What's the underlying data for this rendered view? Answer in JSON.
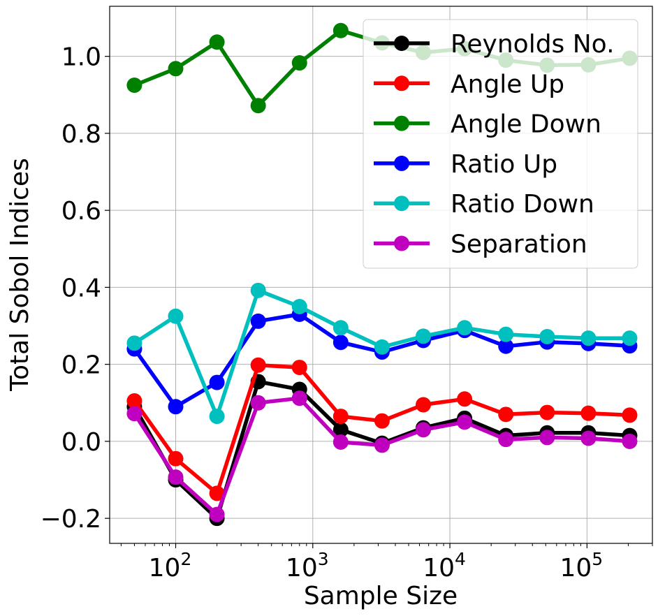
{
  "chart_data": {
    "type": "line",
    "title": "",
    "xlabel": "Sample Size",
    "ylabel": "Total Sobol Indices",
    "xscale": "log",
    "xlim": [
      33,
      300000
    ],
    "ylim": [
      -0.265,
      1.13
    ],
    "grid": true,
    "legend_position": "upper right",
    "x_ticks": [
      {
        "value": 100,
        "base": "10",
        "exp": "2"
      },
      {
        "value": 1000,
        "base": "10",
        "exp": "3"
      },
      {
        "value": 10000,
        "base": "10",
        "exp": "4"
      },
      {
        "value": 100000,
        "base": "10",
        "exp": "5"
      }
    ],
    "y_ticks": [
      {
        "value": -0.2,
        "label": "−0.2"
      },
      {
        "value": 0.0,
        "label": "0.0"
      },
      {
        "value": 0.2,
        "label": "0.2"
      },
      {
        "value": 0.4,
        "label": "0.4"
      },
      {
        "value": 0.6,
        "label": "0.6"
      },
      {
        "value": 0.8,
        "label": "0.8"
      },
      {
        "value": 1.0,
        "label": "1.0"
      }
    ],
    "x": [
      50,
      100,
      200,
      400,
      800,
      1600,
      3200,
      6400,
      12800,
      25600,
      51200,
      102400,
      204800
    ],
    "series": [
      {
        "name": "Reynolds No.",
        "color": "#000000",
        "values": [
          0.09,
          -0.1,
          -0.2,
          0.155,
          0.135,
          0.03,
          -0.005,
          0.035,
          0.06,
          0.015,
          0.022,
          0.022,
          0.015
        ]
      },
      {
        "name": "Angle Up",
        "color": "#ff0000",
        "values": [
          0.105,
          -0.045,
          -0.135,
          0.198,
          0.192,
          0.065,
          0.053,
          0.095,
          0.11,
          0.07,
          0.075,
          0.073,
          0.068
        ]
      },
      {
        "name": "Angle Down",
        "color": "#008000",
        "values": [
          0.925,
          0.968,
          1.037,
          0.872,
          0.983,
          1.067,
          1.035,
          1.01,
          1.02,
          0.99,
          0.977,
          0.978,
          0.995
        ]
      },
      {
        "name": "Ratio Up",
        "color": "#0000ff",
        "values": [
          0.24,
          0.09,
          0.153,
          0.312,
          0.33,
          0.257,
          0.232,
          0.262,
          0.288,
          0.247,
          0.258,
          0.254,
          0.248
        ]
      },
      {
        "name": "Ratio Down",
        "color": "#00bfbf",
        "values": [
          0.255,
          0.325,
          0.065,
          0.392,
          0.35,
          0.295,
          0.245,
          0.273,
          0.295,
          0.278,
          0.272,
          0.268,
          0.268
        ]
      },
      {
        "name": "Separation",
        "color": "#bf00bf",
        "values": [
          0.072,
          -0.093,
          -0.19,
          0.1,
          0.112,
          -0.002,
          -0.01,
          0.03,
          0.05,
          0.005,
          0.01,
          0.008,
          0.0
        ]
      }
    ]
  }
}
